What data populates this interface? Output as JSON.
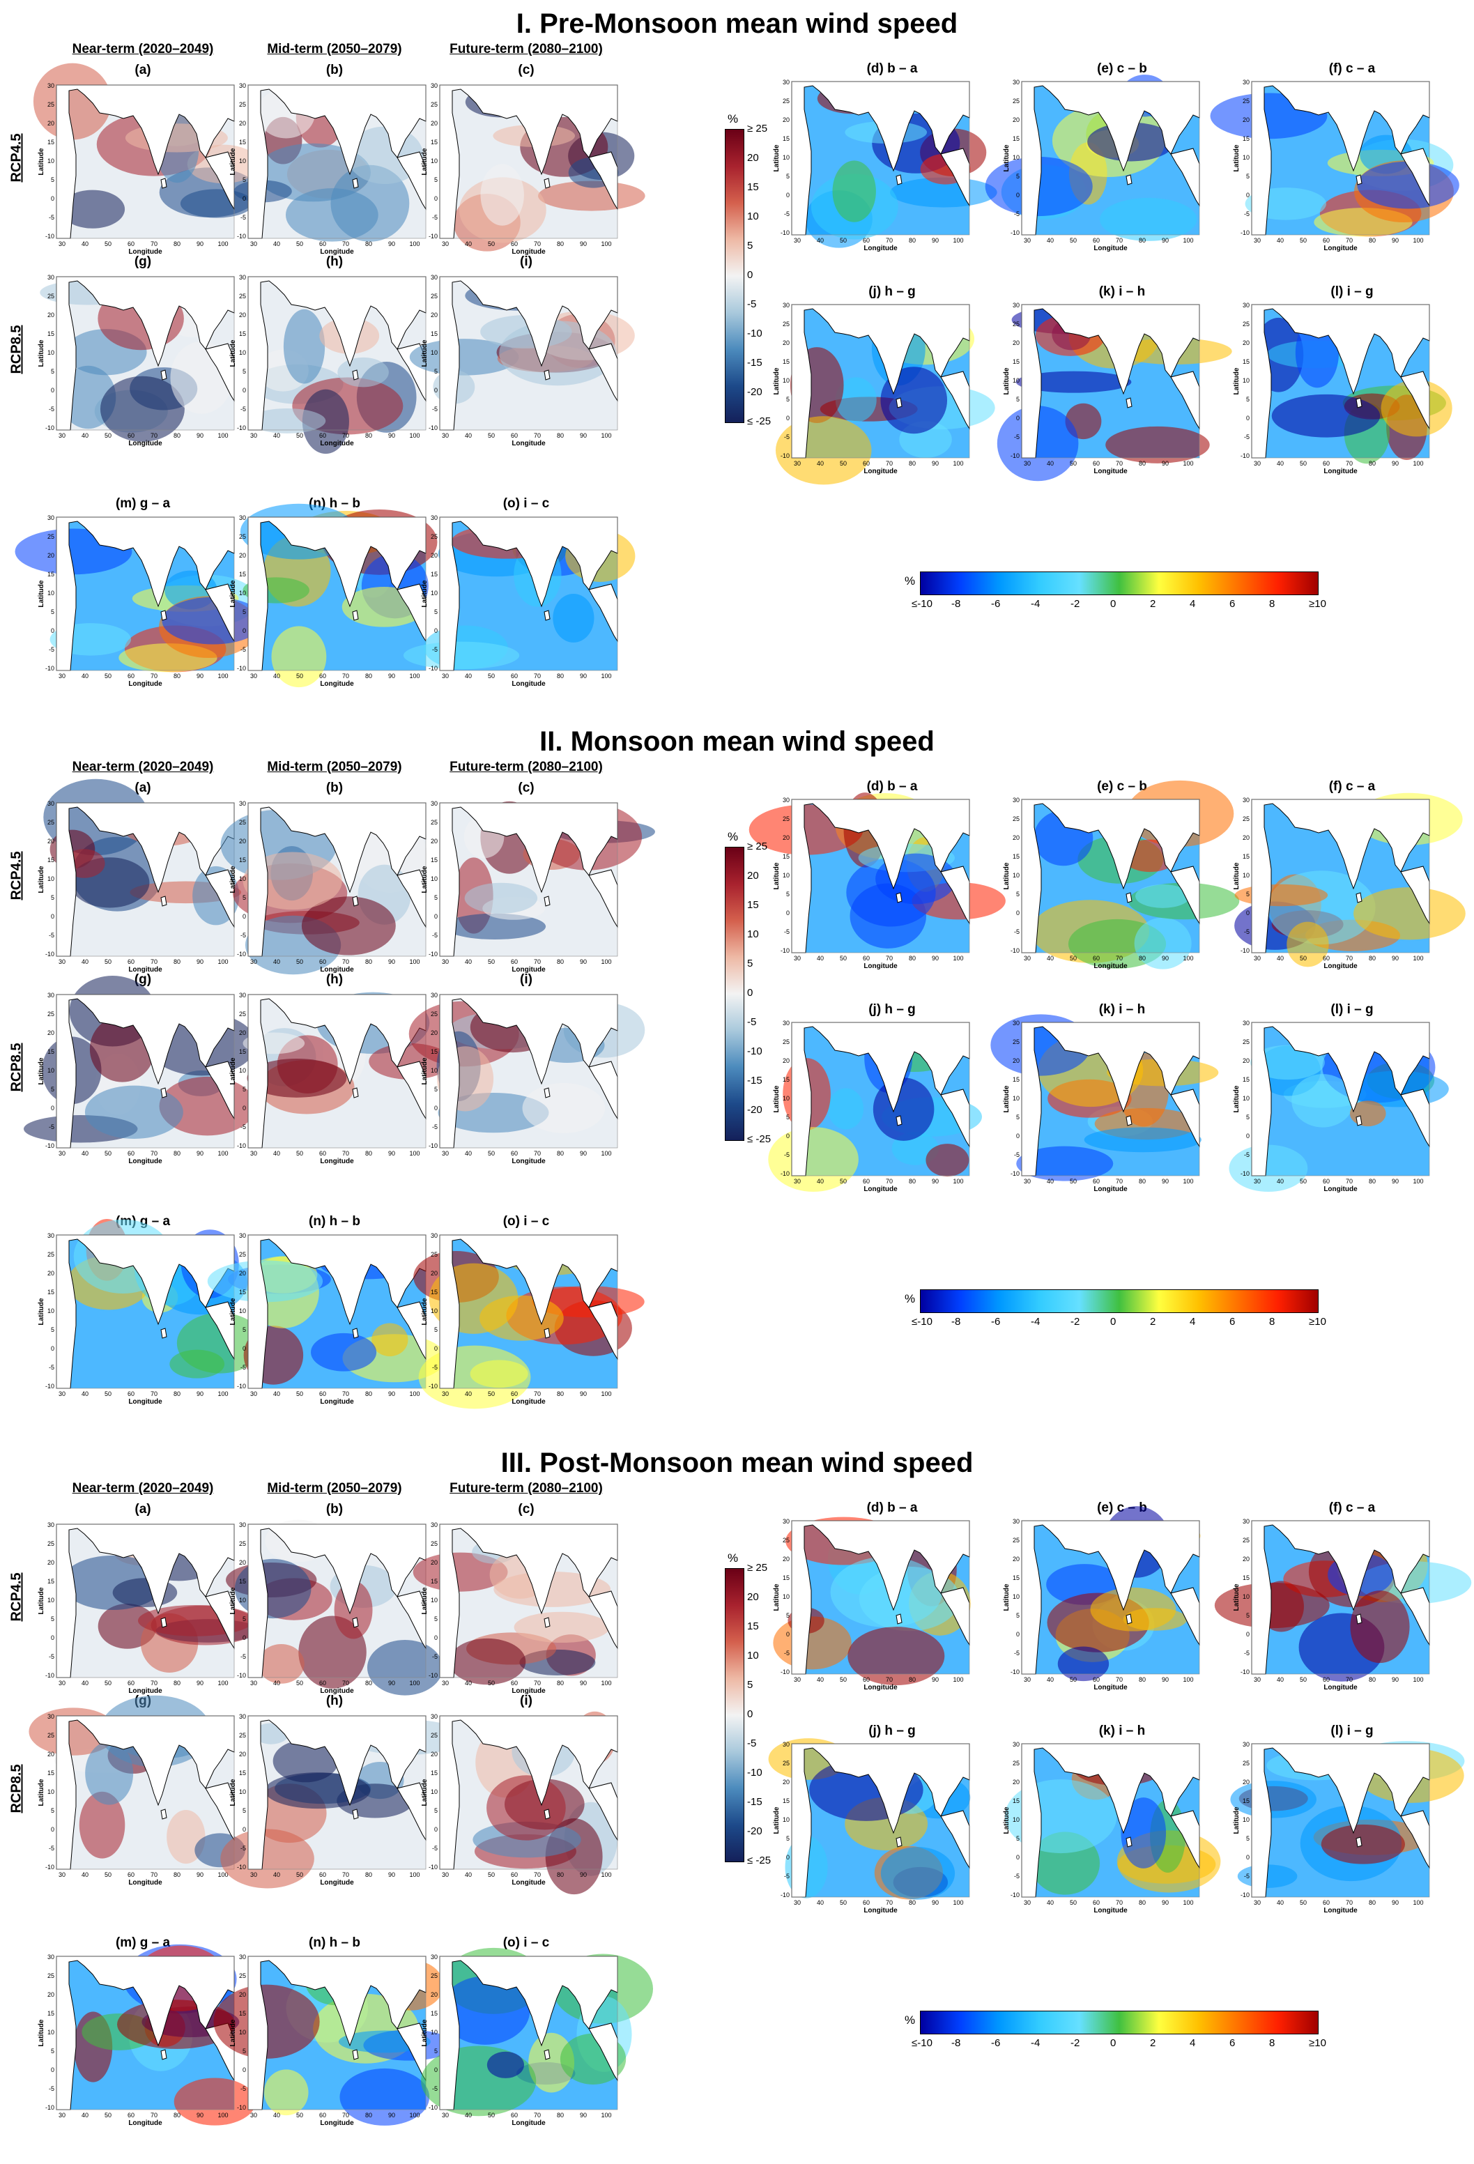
{
  "sections": [
    {
      "title": "I. Pre-Monsoon mean wind speed",
      "col_heads": [
        "Near-term (2020–2049)",
        "Mid-term (2050–2079)",
        "Future-term (2080–2100)"
      ],
      "rows": [
        "RCP4.5",
        "RCP8.5"
      ],
      "abs_labels": [
        "(a)",
        "(b)",
        "(c)",
        "(g)",
        "(h)",
        "(i)"
      ],
      "diff_labels": [
        "(d) b – a",
        "(e) c – b",
        "(f) c – a",
        "(j) h – g",
        "(k) i – h",
        "(l) i – g"
      ],
      "bottom_labels": [
        "(m) g – a",
        "(n) h – b",
        "(o) i – c"
      ]
    },
    {
      "title": "II. Monsoon mean wind speed",
      "col_heads": [
        "Near-term (2020–2049)",
        "Mid-term (2050–2079)",
        "Future-term (2080–2100)"
      ],
      "rows": [
        "RCP4.5",
        "RCP8.5"
      ],
      "abs_labels": [
        "(a)",
        "(b)",
        "(c)",
        "(g)",
        "(h)",
        "(i)"
      ],
      "diff_labels": [
        "(d) b – a",
        "(e) c – b",
        "(f) c – a",
        "(j) h – g",
        "(k) i – h",
        "(l) i – g"
      ],
      "bottom_labels": [
        "(m) g – a",
        "(n) h – b",
        "(o) i – c"
      ]
    },
    {
      "title": "III. Post-Monsoon mean wind speed",
      "col_heads": [
        "Near-term (2020–2049)",
        "Mid-term (2050–2079)",
        "Future-term (2080–2100)"
      ],
      "rows": [
        "RCP4.5",
        "RCP8.5"
      ],
      "abs_labels": [
        "(a)",
        "(b)",
        "(c)",
        "(g)",
        "(h)",
        "(i)"
      ],
      "diff_labels": [
        "(d) b – a",
        "(e) c – b",
        "(f) c – a",
        "(j) h – g",
        "(k) i – h",
        "(l) i – g"
      ],
      "bottom_labels": [
        "(m) g – a",
        "(n) h – b",
        "(o) i – c"
      ]
    }
  ],
  "axes": {
    "xlabel": "Longitude",
    "ylabel": "Latitude",
    "xticks": [
      "30",
      "40",
      "50",
      "60",
      "70",
      "80",
      "90",
      "100"
    ],
    "yticks": [
      "30",
      "25",
      "20",
      "15",
      "10",
      "5",
      "0",
      "-5",
      "-10"
    ]
  },
  "abs_colorbar": {
    "unit": "%",
    "ticks": [
      "≥ 25",
      "20",
      "15",
      "10",
      "5",
      "0",
      "-5",
      "-10",
      "-15",
      "-20",
      "≤ -25"
    ],
    "colors": [
      "#6a0016",
      "#a8222e",
      "#d4604d",
      "#eeb9a5",
      "#f3f3f3",
      "#a9c9dc",
      "#4c8bbd",
      "#1d4a8a",
      "#14205a"
    ]
  },
  "diff_colorbar": {
    "unit": "%",
    "ticks": [
      "≤-10",
      "-8",
      "-6",
      "-4",
      "-2",
      "0",
      "2",
      "4",
      "6",
      "8",
      "≥10"
    ],
    "colors": [
      "#0000a0",
      "#0040ff",
      "#0099ff",
      "#33ccff",
      "#66e0ff",
      "#40c040",
      "#ffff40",
      "#ffc000",
      "#ff7000",
      "#ff2000",
      "#a00000"
    ]
  }
}
